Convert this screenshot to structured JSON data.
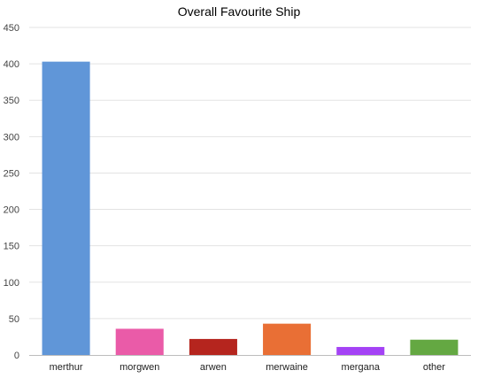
{
  "chart_data": {
    "type": "bar",
    "title": "Overall Favourite Ship",
    "xlabel": "",
    "ylabel": "",
    "categories": [
      "merthur",
      "morgwen",
      "arwen",
      "merwaine",
      "mergana",
      "other"
    ],
    "values": [
      403,
      36,
      22,
      43,
      11,
      21
    ],
    "colors": [
      "#6096d8",
      "#ea5ba8",
      "#b5251e",
      "#e96f35",
      "#a442f5",
      "#64a842"
    ],
    "ylim": [
      0,
      450
    ],
    "yticks": [
      0,
      50,
      100,
      150,
      200,
      250,
      300,
      350,
      400,
      450
    ],
    "grid": true,
    "legend": "none"
  }
}
